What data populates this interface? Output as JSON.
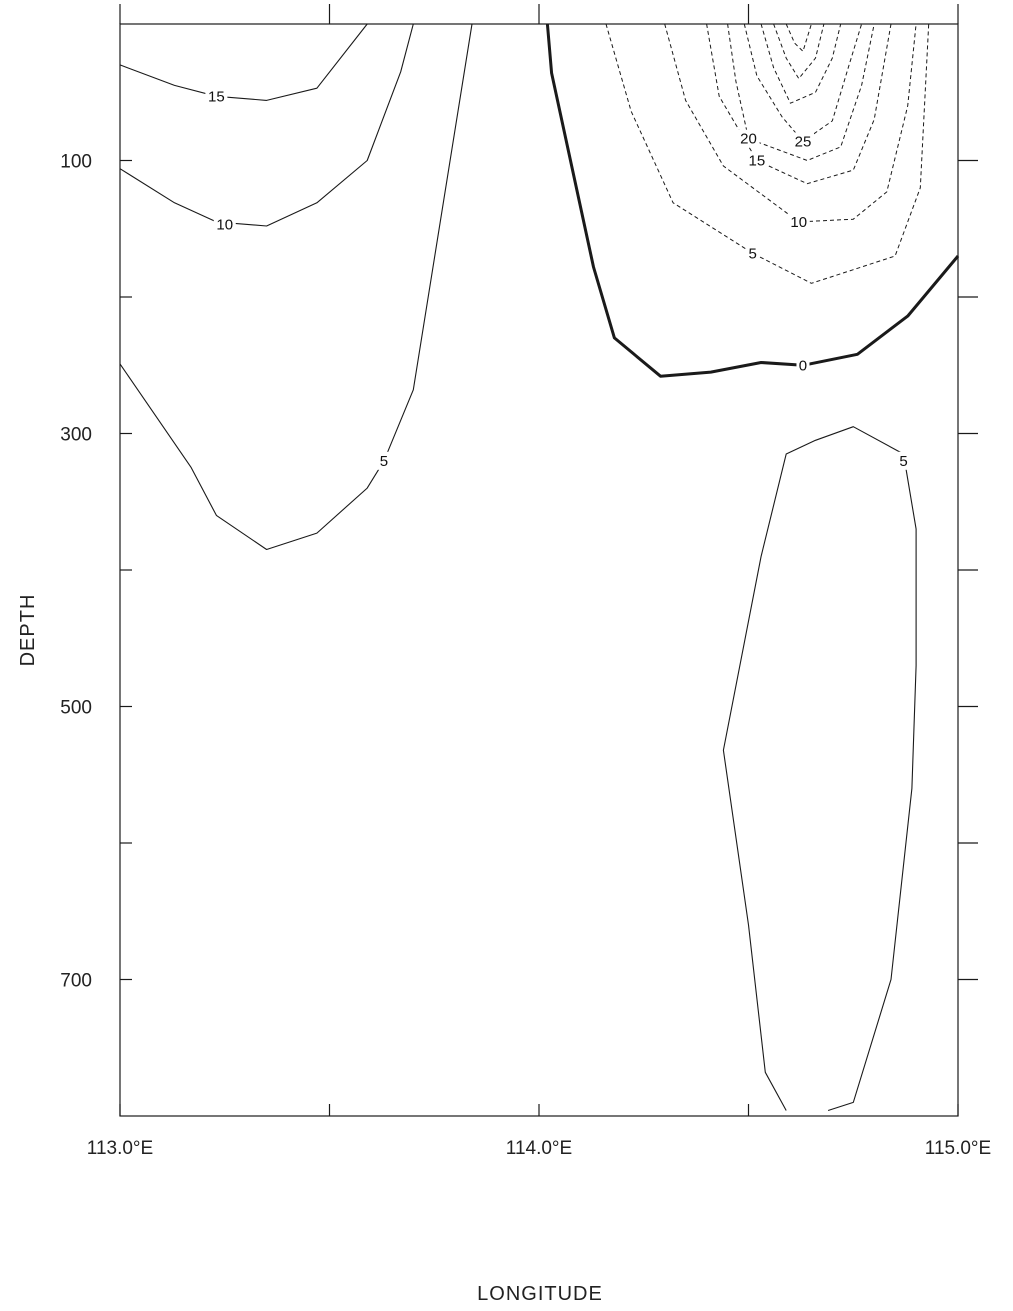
{
  "chart_data": {
    "type": "contour",
    "xlabel": "LONGITUDE",
    "ylabel": "DEPTH",
    "xlim": [
      113.0,
      115.0
    ],
    "ylim": [
      0,
      800
    ],
    "y_inverted": true,
    "x_ticks": [
      113.0,
      113.5,
      114.0,
      114.5,
      115.0
    ],
    "x_tick_labels": [
      "113.0°E",
      "",
      "114.0°E",
      "",
      "115.0°E"
    ],
    "y_ticks": [
      100,
      200,
      300,
      400,
      500,
      600,
      700
    ],
    "y_tick_labels": [
      "100",
      "",
      "300",
      "",
      "500",
      "",
      "700"
    ],
    "line_styles": {
      "positive": "solid",
      "zero": "bold",
      "negative": "dashed"
    },
    "contours": [
      {
        "level": 15,
        "style": "positive",
        "label": "15",
        "label_at": [
          113.23,
          53
        ],
        "points": [
          [
            113.0,
            30
          ],
          [
            113.13,
            45
          ],
          [
            113.23,
            53
          ],
          [
            113.35,
            56
          ],
          [
            113.47,
            47
          ],
          [
            113.59,
            0
          ]
        ]
      },
      {
        "level": 10,
        "style": "positive",
        "label": "10",
        "label_at": [
          113.25,
          147
        ],
        "points": [
          [
            113.0,
            106
          ],
          [
            113.13,
            131
          ],
          [
            113.23,
            145
          ],
          [
            113.35,
            148
          ],
          [
            113.47,
            131
          ],
          [
            113.59,
            100
          ],
          [
            113.67,
            35
          ],
          [
            113.7,
            0
          ]
        ]
      },
      {
        "level": 5,
        "style": "positive",
        "label": "5",
        "label_at": [
          113.63,
          320
        ],
        "points": [
          [
            113.0,
            249
          ],
          [
            113.17,
            325
          ],
          [
            113.23,
            360
          ],
          [
            113.35,
            385
          ],
          [
            113.47,
            373
          ],
          [
            113.59,
            340
          ],
          [
            113.63,
            320
          ],
          [
            113.7,
            268
          ],
          [
            113.84,
            0
          ]
        ]
      },
      {
        "level": 0,
        "style": "zero",
        "label": "0",
        "label_at": [
          114.63,
          250
        ],
        "points": [
          [
            114.02,
            0
          ],
          [
            114.03,
            36
          ],
          [
            114.13,
            178
          ],
          [
            114.18,
            230
          ],
          [
            114.29,
            258
          ],
          [
            114.41,
            255
          ],
          [
            114.53,
            248
          ],
          [
            114.63,
            250
          ],
          [
            114.76,
            242
          ],
          [
            114.88,
            214
          ],
          [
            115.0,
            170
          ]
        ]
      },
      {
        "level": 5,
        "style": "positive",
        "label": "5",
        "label_at": [
          114.87,
          320
        ],
        "points": [
          [
            114.59,
            796
          ],
          [
            114.54,
            768
          ],
          [
            114.5,
            660
          ],
          [
            114.44,
            532
          ],
          [
            114.53,
            390
          ],
          [
            114.59,
            315
          ],
          [
            114.66,
            305
          ],
          [
            114.75,
            295
          ],
          [
            114.87,
            315
          ],
          [
            114.9,
            370
          ],
          [
            114.9,
            470
          ],
          [
            114.89,
            560
          ],
          [
            114.84,
            700
          ],
          [
            114.75,
            790
          ],
          [
            114.69,
            796
          ]
        ]
      },
      {
        "level": -5,
        "style": "negative",
        "label": "5",
        "label_at": [
          114.51,
          168
        ],
        "points": [
          [
            114.16,
            0
          ],
          [
            114.22,
            64
          ],
          [
            114.32,
            131
          ],
          [
            114.51,
            168
          ],
          [
            114.65,
            190
          ],
          [
            114.75,
            180
          ],
          [
            114.85,
            170
          ],
          [
            114.91,
            120
          ],
          [
            114.93,
            0
          ]
        ]
      },
      {
        "level": -10,
        "style": "negative",
        "label": "10",
        "label_at": [
          114.62,
          145
        ],
        "points": [
          [
            114.3,
            0
          ],
          [
            114.35,
            56
          ],
          [
            114.44,
            104
          ],
          [
            114.62,
            145
          ],
          [
            114.75,
            143
          ],
          [
            114.83,
            123
          ],
          [
            114.88,
            60
          ],
          [
            114.9,
            0
          ]
        ]
      },
      {
        "level": -15,
        "style": "negative",
        "label": "15",
        "label_at": [
          114.52,
          100
        ],
        "points": [
          [
            114.4,
            0
          ],
          [
            114.43,
            53
          ],
          [
            114.52,
            100
          ],
          [
            114.64,
            117
          ],
          [
            114.75,
            107
          ],
          [
            114.8,
            70
          ],
          [
            114.84,
            0
          ]
        ]
      },
      {
        "level": -20,
        "style": "negative",
        "label": "20",
        "label_at": [
          114.5,
          84
        ],
        "points": [
          [
            114.45,
            0
          ],
          [
            114.47,
            42
          ],
          [
            114.5,
            84
          ],
          [
            114.64,
            100
          ],
          [
            114.72,
            90
          ],
          [
            114.77,
            45
          ],
          [
            114.8,
            0
          ]
        ]
      },
      {
        "level": -25,
        "style": "negative",
        "label": "25",
        "label_at": [
          114.63,
          86
        ],
        "points": [
          [
            114.49,
            0
          ],
          [
            114.52,
            38
          ],
          [
            114.58,
            68
          ],
          [
            114.63,
            86
          ],
          [
            114.7,
            71
          ],
          [
            114.74,
            30
          ],
          [
            114.77,
            0
          ]
        ]
      },
      {
        "level": -30,
        "style": "negative",
        "label": "",
        "label_at": null,
        "points": [
          [
            114.53,
            0
          ],
          [
            114.56,
            32
          ],
          [
            114.6,
            58
          ],
          [
            114.66,
            50
          ],
          [
            114.7,
            25
          ],
          [
            114.72,
            0
          ]
        ]
      },
      {
        "level": -35,
        "style": "negative",
        "label": "",
        "label_at": null,
        "points": [
          [
            114.56,
            0
          ],
          [
            114.59,
            25
          ],
          [
            114.62,
            40
          ],
          [
            114.66,
            25
          ],
          [
            114.68,
            0
          ]
        ]
      },
      {
        "level": -40,
        "style": "negative",
        "label": "",
        "label_at": null,
        "points": [
          [
            114.59,
            0
          ],
          [
            114.61,
            14
          ],
          [
            114.63,
            20
          ],
          [
            114.64,
            10
          ],
          [
            114.65,
            0
          ]
        ]
      }
    ]
  }
}
